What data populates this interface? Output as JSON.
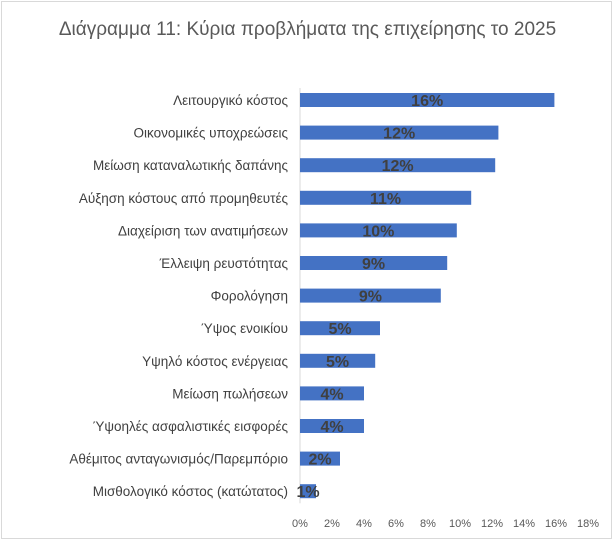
{
  "chart_data": {
    "type": "bar",
    "orientation": "horizontal",
    "title": "Διάγραμμα 11: Κύρια προβλήματα της επιχείρησης το 2025",
    "xlabel": "",
    "ylabel": "",
    "categories": [
      "Λειτουργικό κόστος",
      "Οικονομικές υποχρεώσεις",
      "Μείωση καταναλωτικής δαπάνης",
      "Αύξηση κόστους από προμηθευτές",
      "Διαχείριση των ανατιμήσεων",
      "Έλλειψη ρευστότητας",
      "Φορολόγηση",
      "Ύψος ενοικίου",
      "Υψηλό κόστος ενέργειας",
      "Μείωση πωλήσεων",
      "Ύψοηλές ασφαλιστικές εισφορές",
      "Αθέμιτος ανταγωνισμός/Παρεμπόριο",
      "Μισθολογικό κόστος (κατώτατος)"
    ],
    "values": [
      15.9,
      12.4,
      12.2,
      10.7,
      9.8,
      9.2,
      8.8,
      5.0,
      4.7,
      4.0,
      4.0,
      2.5,
      1.0
    ],
    "data_labels": [
      "16%",
      "12%",
      "12%",
      "11%",
      "10%",
      "9%",
      "9%",
      "5%",
      "5%",
      "4%",
      "4%",
      "2%",
      "1%"
    ],
    "xlim": [
      0,
      18
    ],
    "x_ticks": [
      0,
      2,
      4,
      6,
      8,
      10,
      12,
      14,
      16,
      18
    ],
    "x_tick_labels": [
      "0%",
      "2%",
      "4%",
      "6%",
      "8%",
      "10%",
      "12%",
      "14%",
      "16%",
      "18%"
    ],
    "grid": false,
    "legend": "none",
    "bar_color": "#4472c4"
  }
}
